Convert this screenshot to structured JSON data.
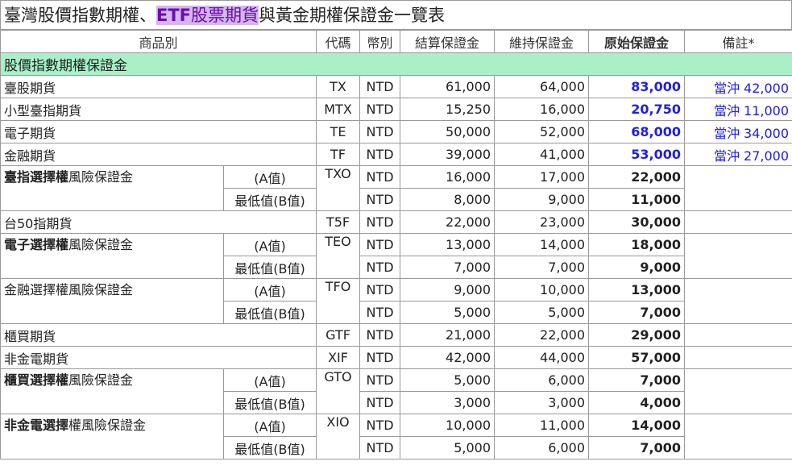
{
  "title": {
    "prefix": "臺灣股價指數期權、",
    "highlight_latin": "ETF",
    "highlight_cjk": "股票期貨",
    "suffix": "與黃金期權保證金一覽表"
  },
  "header": {
    "product": "商品別",
    "code": "代碼",
    "currency": "幣別",
    "settlement": "結算保證金",
    "maintenance": "維持保證金",
    "original": "原始保證金",
    "remark": "備註*"
  },
  "section_title": "股價指數期權保證金",
  "rows": [
    {
      "name": "臺股期貨",
      "code": "TX",
      "cur": "NTD",
      "settle": "61,000",
      "maint": "64,000",
      "orig": "83,000",
      "note": "當沖 42,000"
    },
    {
      "name": "小型臺指期貨",
      "code": "MTX",
      "cur": "NTD",
      "settle": "15,250",
      "maint": "16,000",
      "orig": "20,750",
      "note": "當沖 11,000"
    },
    {
      "name": "電子期貨",
      "code": "TE",
      "cur": "NTD",
      "settle": "50,000",
      "maint": "52,000",
      "orig": "68,000",
      "note": "當沖 34,000"
    },
    {
      "name": "金融期貨",
      "code": "TF",
      "cur": "NTD",
      "settle": "39,000",
      "maint": "41,000",
      "orig": "53,000",
      "note": "當沖 27,000"
    }
  ],
  "opt_txo": {
    "name_bold": "臺指選擇權",
    "name_rest": "風險保證金",
    "code": "TXO",
    "a_label": "(A值)",
    "b_label": "最低值(B值)",
    "a": {
      "cur": "NTD",
      "settle": "16,000",
      "maint": "17,000",
      "orig": "22,000"
    },
    "b": {
      "cur": "NTD",
      "settle": "8,000",
      "maint": "9,000",
      "orig": "11,000"
    }
  },
  "t5f": {
    "name": "台50指期貨",
    "code": "T5F",
    "cur": "NTD",
    "settle": "22,000",
    "maint": "23,000",
    "orig": "30,000"
  },
  "opt_teo": {
    "name_bold": "電子選擇權",
    "name_rest": "風險保證金",
    "code": "TEO",
    "a_label": "(A值)",
    "b_label": "最低值(B值)",
    "a": {
      "cur": "NTD",
      "settle": "13,000",
      "maint": "14,000",
      "orig": "18,000"
    },
    "b": {
      "cur": "NTD",
      "settle": "7,000",
      "maint": "7,000",
      "orig": "9,000"
    }
  },
  "opt_tfo": {
    "name_bold": "金融選擇權",
    "name_rest": "風險保證金",
    "code": "TFO",
    "a_label": "(A值)",
    "b_label": "最低值(B值)",
    "a": {
      "cur": "NTD",
      "settle": "9,000",
      "maint": "10,000",
      "orig": "13,000"
    },
    "b": {
      "cur": "NTD",
      "settle": "5,000",
      "maint": "5,000",
      "orig": "7,000"
    }
  },
  "gtf": {
    "name": "櫃買期貨",
    "code": "GTF",
    "cur": "NTD",
    "settle": "21,000",
    "maint": "22,000",
    "orig": "29,000"
  },
  "xif": {
    "name": "非金電期貨",
    "code": "XIF",
    "cur": "NTD",
    "settle": "42,000",
    "maint": "44,000",
    "orig": "57,000"
  },
  "opt_gto": {
    "name_bold": "櫃買選擇權",
    "name_rest": "風險保證金",
    "code": "GTO",
    "a_label": "(A值)",
    "b_label": "最低值(B值)",
    "a": {
      "cur": "NTD",
      "settle": "5,000",
      "maint": "6,000",
      "orig": "7,000"
    },
    "b": {
      "cur": "NTD",
      "settle": "3,000",
      "maint": "3,000",
      "orig": "4,000"
    }
  },
  "opt_xio": {
    "name_bold": "非金電選擇",
    "name_rest": "權風險保證金",
    "code": "XIO",
    "a_label": "(A值)",
    "b_label": "最低值(B值)",
    "a": {
      "cur": "NTD",
      "settle": "10,000",
      "maint": "11,000",
      "orig": "14,000"
    },
    "b": {
      "cur": "NTD",
      "settle": "5,000",
      "maint": "6,000",
      "orig": "7,000"
    }
  }
}
